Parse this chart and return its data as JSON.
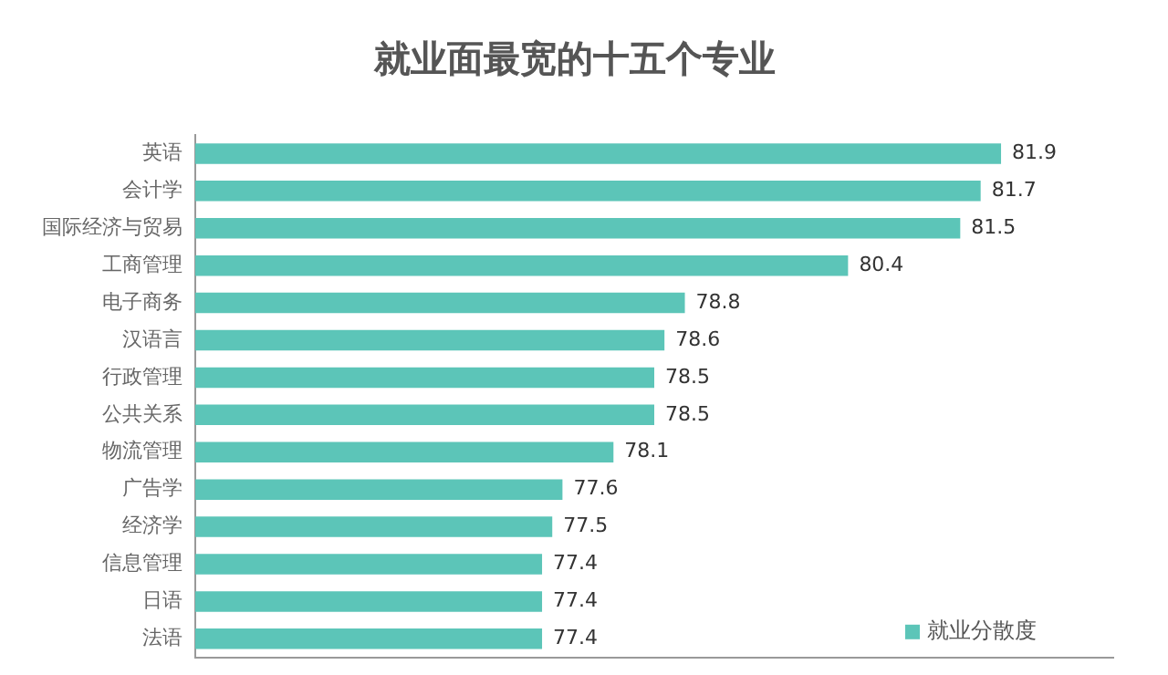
{
  "chart_data": {
    "type": "bar",
    "orientation": "horizontal",
    "title": "就业面最宽的十五个专业",
    "categories": [
      "英语",
      "会计学",
      "国际经济与贸易",
      "工商管理",
      "电子商务",
      "汉语言",
      "行政管理",
      "公共关系",
      "物流管理",
      "广告学",
      "经济学",
      "信息管理",
      "日语",
      "法语"
    ],
    "series": [
      {
        "name": "就业分散度",
        "color": "#5cc5b8",
        "values": [
          81.9,
          81.7,
          81.5,
          80.4,
          78.8,
          78.6,
          78.5,
          78.5,
          78.1,
          77.6,
          77.5,
          77.4,
          77.4,
          77.4
        ]
      }
    ],
    "xlim": [
      74,
      83
    ],
    "tick_labels": "y",
    "grid": false,
    "legend": "bottom right",
    "data_labels": true
  }
}
